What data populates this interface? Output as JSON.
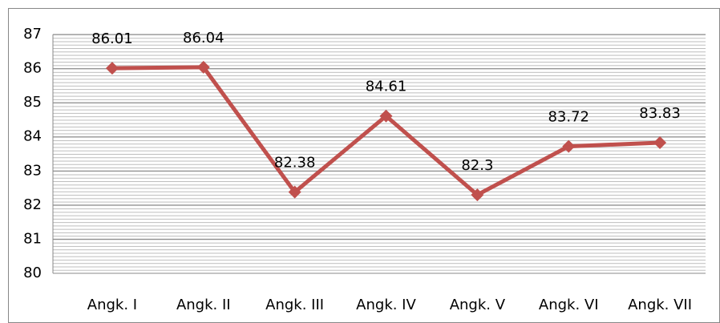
{
  "chart_data": {
    "type": "line",
    "categories": [
      "Angk. I",
      "Angk. II",
      "Angk. III",
      "Angk. IV",
      "Angk. V",
      "Angk. VI",
      "Angk. VII"
    ],
    "series": [
      {
        "color": "#c0504d",
        "values": [
          86.01,
          86.04,
          82.38,
          84.61,
          82.3,
          83.72,
          83.83
        ]
      }
    ],
    "ylim": [
      80,
      87
    ],
    "yticks": [
      80,
      81,
      82,
      83,
      84,
      85,
      86,
      87
    ],
    "grid": true,
    "minor_grid": true
  }
}
